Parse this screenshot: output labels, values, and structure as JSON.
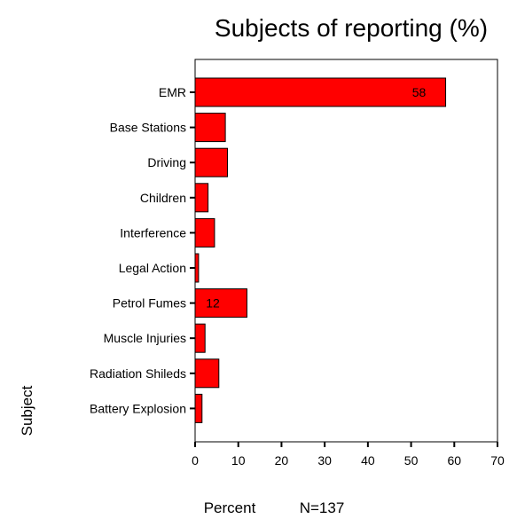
{
  "chart_data": {
    "type": "bar",
    "orientation": "horizontal",
    "title": "Subjects of reporting (%)",
    "xlabel": "Percent",
    "ylabel": "Subject",
    "note": "N=137",
    "categories": [
      "EMR",
      "Base Stations",
      "Driving",
      "Children",
      "Interference",
      "Legal Action",
      "Petrol Fumes",
      "Muscle Injuries",
      "Radiation Shileds",
      "Battery Explosion"
    ],
    "values": [
      58,
      7,
      7.5,
      3,
      4.5,
      0.8,
      12,
      2.3,
      5.5,
      1.6
    ],
    "data_labels": [
      "58",
      "",
      "",
      "",
      "",
      "",
      "12",
      "",
      "",
      ""
    ],
    "xlim": [
      0,
      70
    ],
    "xticks": [
      "0",
      "10",
      "20",
      "30",
      "40",
      "50",
      "60",
      "70"
    ],
    "grid": false,
    "colors": {
      "bar": "#ff0000",
      "outline": "#000000"
    }
  }
}
